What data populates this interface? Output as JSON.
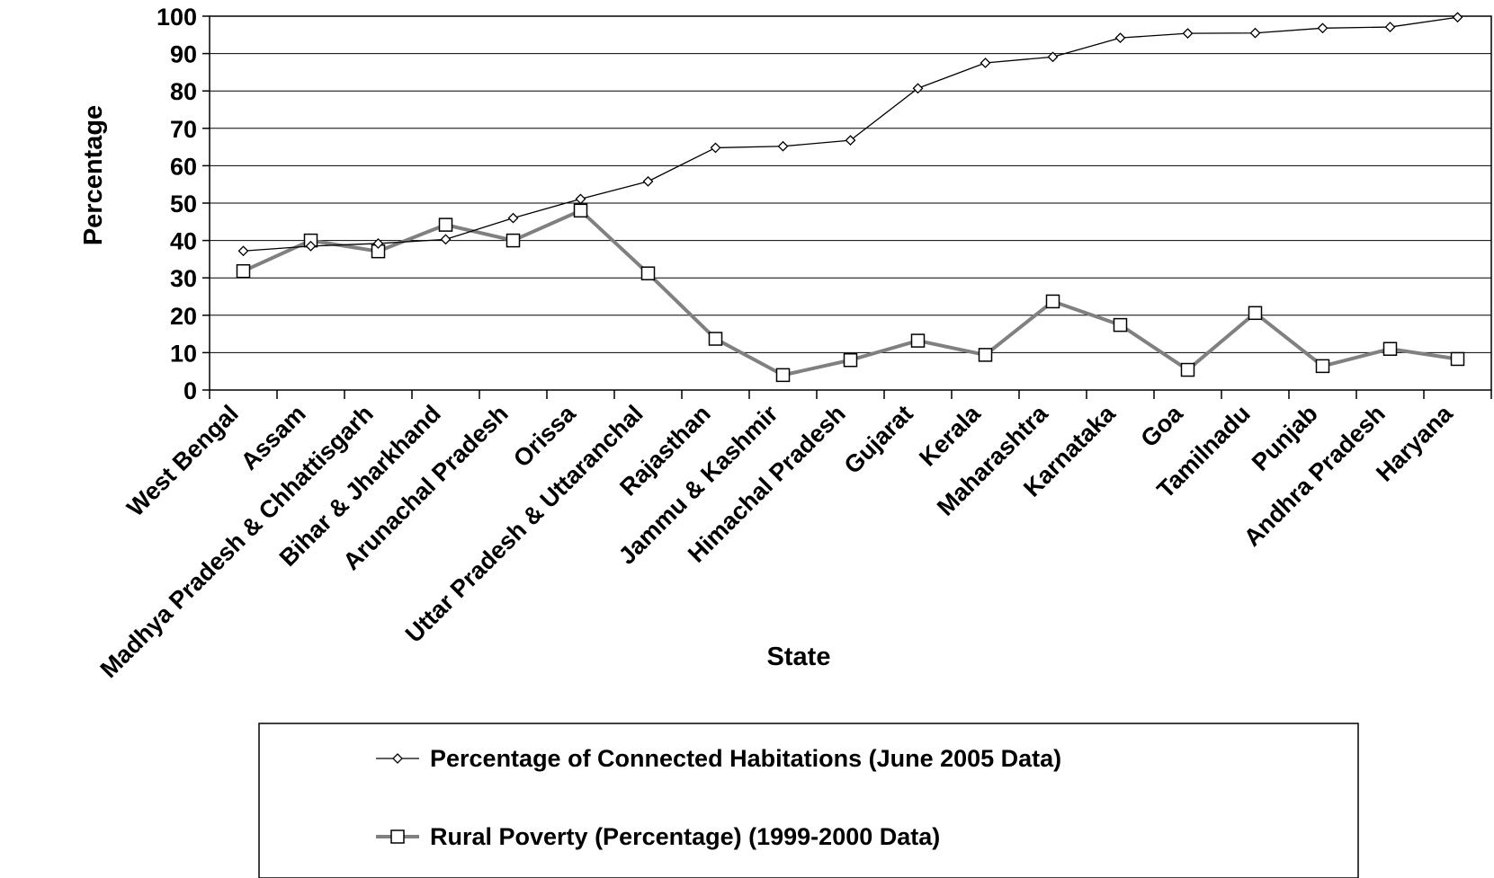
{
  "chart_data": {
    "type": "line",
    "title": "",
    "xlabel": "State",
    "ylabel": "Percentage",
    "ylim": [
      0,
      100
    ],
    "yticks": [
      0,
      10,
      20,
      30,
      40,
      50,
      60,
      70,
      80,
      90,
      100
    ],
    "grid": "horizontal",
    "legend_position": "bottom",
    "categories": [
      "West Bengal",
      "Assam",
      "Madhya Pradesh & Chhattisgarh",
      "Bihar & Jharkhand",
      "Arunachal Pradesh",
      "Orissa",
      "Uttar Pradesh & Uttaranchal",
      "Rajasthan",
      "Jammu & Kashmir",
      "Himachal Pradesh",
      "Gujarat",
      "Kerala",
      "Maharashtra",
      "Karnataka",
      "Goa",
      "Tamilnadu",
      "Punjab",
      "Andhra Pradesh",
      "Haryana"
    ],
    "series": [
      {
        "name": "Percentage of Connected Habitations (June 2005 Data)",
        "color": "#000000",
        "marker": "diamond",
        "values": [
          37.2,
          38.5,
          39.2,
          40.3,
          46,
          51.1,
          55.8,
          64.8,
          65.2,
          66.8,
          80.7,
          87.5,
          89.1,
          94.2,
          95.4,
          95.5,
          96.8,
          97.1,
          99.7
        ]
      },
      {
        "name": "Rural Poverty (Percentage) (1999-2000 Data)",
        "color": "#808080",
        "marker": "square",
        "values": [
          31.8,
          40,
          37.1,
          44.2,
          40,
          48,
          31.2,
          13.7,
          4,
          8,
          13.2,
          9.4,
          23.7,
          17.4,
          5.4,
          20.6,
          6.4,
          11,
          8.3
        ]
      }
    ]
  }
}
